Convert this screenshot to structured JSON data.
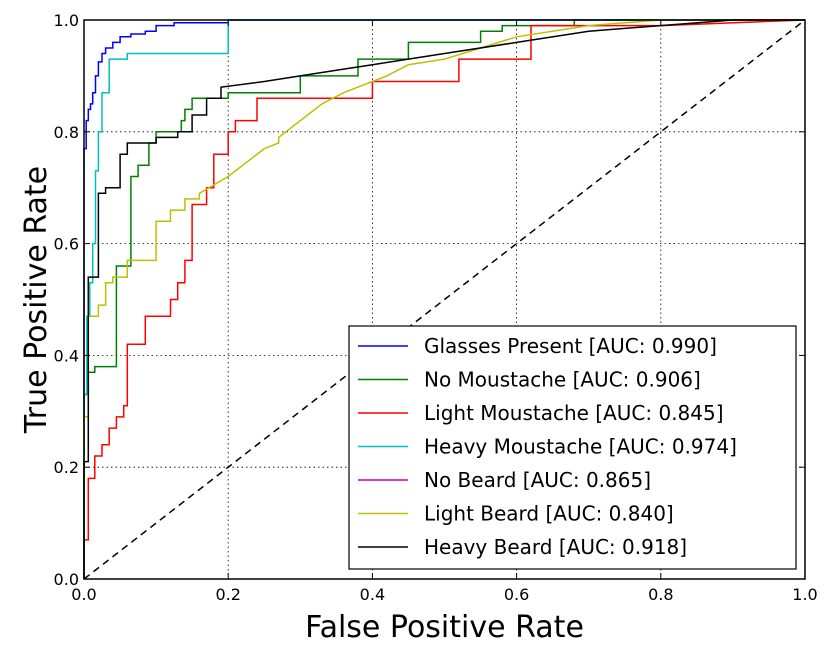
{
  "chart_data": {
    "type": "line",
    "title": "",
    "xlabel": "False Positive Rate",
    "ylabel": "True Positive Rate",
    "xlim": [
      0.0,
      1.0
    ],
    "ylim": [
      0.0,
      1.0
    ],
    "grid": true,
    "legend_position": "lower-right",
    "x_ticks": [
      0.0,
      0.2,
      0.4,
      0.6,
      0.8,
      1.0
    ],
    "y_ticks": [
      0.0,
      0.2,
      0.4,
      0.6,
      0.8,
      1.0
    ],
    "x_tick_labels": [
      "0.0",
      "0.2",
      "0.4",
      "0.6",
      "0.8",
      "1.0"
    ],
    "y_tick_labels": [
      "0.0",
      "0.2",
      "0.4",
      "0.6",
      "0.8",
      "1.0"
    ],
    "diagonal": {
      "x": [
        0,
        1
      ],
      "y": [
        0,
        1
      ],
      "color": "#000000",
      "style": "dashed"
    },
    "series": [
      {
        "name": "Glasses Present [AUC: 0.990]",
        "color": "#0000ff",
        "x": [
          0.0,
          0.0,
          0.003,
          0.003,
          0.006,
          0.006,
          0.009,
          0.009,
          0.012,
          0.012,
          0.016,
          0.016,
          0.02,
          0.02,
          0.025,
          0.025,
          0.03,
          0.03,
          0.04,
          0.04,
          0.05,
          0.05,
          0.065,
          0.065,
          0.085,
          0.085,
          0.1,
          0.1,
          0.125,
          0.125,
          0.2,
          0.2,
          0.6,
          1.0
        ],
        "y": [
          0.0,
          0.77,
          0.77,
          0.82,
          0.82,
          0.84,
          0.84,
          0.85,
          0.85,
          0.87,
          0.87,
          0.9,
          0.9,
          0.925,
          0.925,
          0.94,
          0.94,
          0.95,
          0.95,
          0.96,
          0.96,
          0.97,
          0.97,
          0.975,
          0.975,
          0.98,
          0.98,
          0.99,
          0.99,
          0.995,
          0.995,
          1.0,
          1.0,
          1.0
        ]
      },
      {
        "name": "No Moustache [AUC: 0.906]",
        "color": "#008000",
        "x": [
          0.0,
          0.0,
          0.006,
          0.006,
          0.015,
          0.015,
          0.045,
          0.045,
          0.065,
          0.065,
          0.075,
          0.075,
          0.09,
          0.09,
          0.1,
          0.1,
          0.135,
          0.135,
          0.14,
          0.14,
          0.15,
          0.15,
          0.2,
          0.2,
          0.3,
          0.3,
          0.38,
          0.38,
          0.45,
          0.45,
          0.55,
          0.55,
          0.58,
          0.58,
          0.68,
          0.68,
          0.85,
          1.0
        ],
        "y": [
          0.0,
          0.33,
          0.33,
          0.37,
          0.37,
          0.38,
          0.38,
          0.56,
          0.56,
          0.72,
          0.72,
          0.74,
          0.74,
          0.78,
          0.78,
          0.8,
          0.8,
          0.82,
          0.82,
          0.84,
          0.84,
          0.86,
          0.86,
          0.87,
          0.87,
          0.9,
          0.9,
          0.93,
          0.93,
          0.96,
          0.96,
          0.98,
          0.98,
          0.99,
          0.99,
          1.0,
          1.0,
          1.0
        ]
      },
      {
        "name": "Light Moustache [AUC: 0.845]",
        "color": "#ff0000",
        "x": [
          0.0,
          0.0,
          0.006,
          0.006,
          0.015,
          0.015,
          0.025,
          0.025,
          0.035,
          0.035,
          0.045,
          0.045,
          0.055,
          0.055,
          0.06,
          0.06,
          0.085,
          0.085,
          0.12,
          0.12,
          0.13,
          0.13,
          0.14,
          0.14,
          0.15,
          0.15,
          0.17,
          0.17,
          0.18,
          0.18,
          0.2,
          0.2,
          0.21,
          0.21,
          0.24,
          0.24,
          0.4,
          0.4,
          0.52,
          0.52,
          0.62,
          0.62,
          0.8,
          1.0
        ],
        "y": [
          0.0,
          0.07,
          0.07,
          0.18,
          0.18,
          0.22,
          0.22,
          0.24,
          0.24,
          0.27,
          0.27,
          0.29,
          0.29,
          0.31,
          0.31,
          0.42,
          0.42,
          0.47,
          0.47,
          0.5,
          0.5,
          0.53,
          0.53,
          0.57,
          0.57,
          0.67,
          0.67,
          0.7,
          0.7,
          0.76,
          0.76,
          0.8,
          0.8,
          0.82,
          0.82,
          0.86,
          0.86,
          0.89,
          0.89,
          0.93,
          0.93,
          0.99,
          0.99,
          1.0
        ]
      },
      {
        "name": "Heavy Moustache [AUC: 0.974]",
        "color": "#00bfbf",
        "x": [
          0.0,
          0.0,
          0.004,
          0.004,
          0.008,
          0.008,
          0.012,
          0.012,
          0.016,
          0.016,
          0.02,
          0.02,
          0.025,
          0.025,
          0.035,
          0.035,
          0.06,
          0.06,
          0.2,
          0.2,
          0.4,
          1.0
        ],
        "y": [
          0.0,
          0.33,
          0.33,
          0.47,
          0.47,
          0.53,
          0.53,
          0.6,
          0.6,
          0.73,
          0.73,
          0.8,
          0.8,
          0.87,
          0.87,
          0.93,
          0.93,
          0.94,
          0.94,
          1.0,
          1.0,
          1.0
        ]
      },
      {
        "name": "No Beard [AUC: 0.865]",
        "color": "#bf00bf",
        "x": [],
        "y": []
      },
      {
        "name": "Light Beard [AUC: 0.840]",
        "color": "#bfbf00",
        "x": [
          0.0,
          0.0,
          0.006,
          0.006,
          0.02,
          0.02,
          0.03,
          0.03,
          0.04,
          0.04,
          0.06,
          0.06,
          0.1,
          0.1,
          0.12,
          0.12,
          0.14,
          0.14,
          0.16,
          0.16,
          0.2,
          0.25,
          0.27,
          0.27,
          0.33,
          0.36,
          0.38,
          0.4,
          0.42,
          0.45,
          0.5,
          0.55,
          0.6,
          0.7,
          0.8,
          1.0
        ],
        "y": [
          0.0,
          0.29,
          0.29,
          0.47,
          0.47,
          0.49,
          0.49,
          0.53,
          0.53,
          0.54,
          0.54,
          0.57,
          0.57,
          0.64,
          0.64,
          0.66,
          0.66,
          0.68,
          0.68,
          0.69,
          0.72,
          0.77,
          0.78,
          0.79,
          0.85,
          0.87,
          0.88,
          0.89,
          0.9,
          0.92,
          0.93,
          0.95,
          0.97,
          0.99,
          1.0,
          1.0
        ]
      },
      {
        "name": "Heavy Beard [AUC: 0.918]",
        "color": "#000000",
        "x": [
          0.0,
          0.0,
          0.006,
          0.006,
          0.02,
          0.02,
          0.03,
          0.03,
          0.05,
          0.05,
          0.06,
          0.06,
          0.1,
          0.1,
          0.13,
          0.13,
          0.15,
          0.15,
          0.17,
          0.17,
          0.19,
          0.19,
          0.25,
          0.3,
          0.35,
          0.4,
          0.5,
          0.6,
          0.7,
          0.8,
          0.9,
          1.0
        ],
        "y": [
          0.0,
          0.21,
          0.21,
          0.54,
          0.54,
          0.69,
          0.69,
          0.7,
          0.7,
          0.76,
          0.76,
          0.78,
          0.78,
          0.79,
          0.79,
          0.8,
          0.8,
          0.83,
          0.83,
          0.86,
          0.86,
          0.88,
          0.89,
          0.9,
          0.91,
          0.92,
          0.94,
          0.96,
          0.98,
          0.99,
          1.0,
          1.0
        ]
      }
    ]
  }
}
